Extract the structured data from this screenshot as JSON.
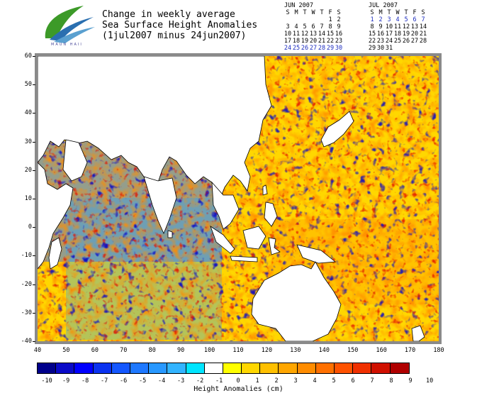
{
  "logo": {
    "text": "MAUN  HAII"
  },
  "title": {
    "line1": "Change in weekly average",
    "line2": "Sea Surface Height Anomalies",
    "line3": "(1jul2007 minus 24jun2007)"
  },
  "calendars": [
    {
      "month": "JUN 2007",
      "header": [
        "S",
        "M",
        "T",
        "W",
        "T",
        "F",
        "S"
      ],
      "weeks": [
        [
          "",
          "",
          "",
          "",
          "",
          "1",
          "2"
        ],
        [
          "3",
          "4",
          "5",
          "6",
          "7",
          "8",
          "9"
        ],
        [
          "10",
          "11",
          "12",
          "13",
          "14",
          "15",
          "16"
        ],
        [
          "17",
          "18",
          "19",
          "20",
          "21",
          "22",
          "23"
        ],
        [
          "24",
          "25",
          "26",
          "27",
          "28",
          "29",
          "30"
        ]
      ],
      "highlight_week": 4
    },
    {
      "month": "JUL 2007",
      "header": [
        "S",
        "M",
        "T",
        "W",
        "T",
        "F",
        "S"
      ],
      "weeks": [
        [
          "1",
          "2",
          "3",
          "4",
          "5",
          "6",
          "7"
        ],
        [
          "8",
          "9",
          "10",
          "11",
          "12",
          "13",
          "14"
        ],
        [
          "15",
          "16",
          "17",
          "18",
          "19",
          "20",
          "21"
        ],
        [
          "22",
          "23",
          "24",
          "25",
          "26",
          "27",
          "28"
        ],
        [
          "29",
          "30",
          "31",
          "",
          "",
          "",
          ""
        ]
      ],
      "highlight_week": 0
    }
  ],
  "map": {
    "lon_range": [
      40,
      180
    ],
    "lat_range": [
      -40,
      60
    ],
    "x_ticks": [
      "40",
      "50",
      "60",
      "70",
      "80",
      "90",
      "100",
      "110",
      "120",
      "130",
      "140",
      "150",
      "160",
      "170",
      "180"
    ],
    "y_ticks": [
      "60",
      "50",
      "40",
      "30",
      "20",
      "10",
      "0",
      "-10",
      "-20",
      "-30",
      "-40"
    ]
  },
  "colorbar": {
    "colors": [
      "#00008b",
      "#0a0ac8",
      "#0000ff",
      "#0b32f0",
      "#1457ff",
      "#1e78ff",
      "#2898ff",
      "#32b4ff",
      "#00e5ff",
      "#ffffff",
      "#ffff00",
      "#ffd700",
      "#ffc000",
      "#ffa600",
      "#ff8c00",
      "#ff7000",
      "#ff5200",
      "#f03000",
      "#d01000",
      "#b00000"
    ],
    "labels": [
      "-10",
      "-9",
      "-8",
      "-7",
      "-6",
      "-5",
      "-4",
      "-3",
      "-2",
      "-1",
      "0",
      "1",
      "2",
      "3",
      "4",
      "5",
      "6",
      "7",
      "8",
      "9",
      "10"
    ],
    "title": "Height Anomalies (cm)"
  }
}
